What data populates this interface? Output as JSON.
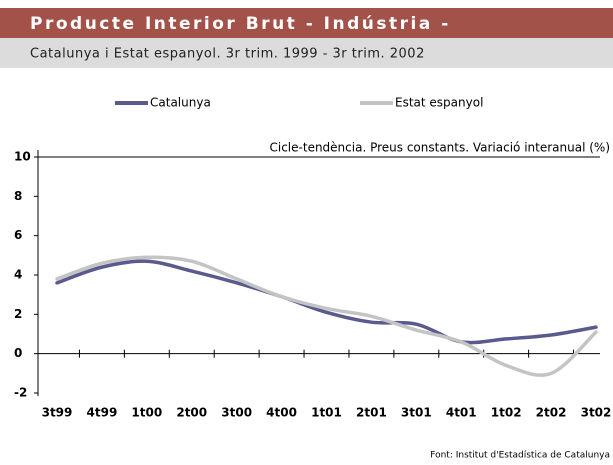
{
  "chart_data": {
    "type": "line",
    "title": "Producte Interior Brut - Indústria -",
    "subtitle": "Catalunya i Estat espanyol. 3r trim. 1999 - 3r trim. 2002",
    "annotation": "Cicle-tendència. Preus constants. Variació interanual (%)",
    "source": "Font: Institut d'Estadística de Catalunya",
    "categories": [
      "3t99",
      "4t99",
      "1t00",
      "2t00",
      "3t00",
      "4t00",
      "1t01",
      "2t01",
      "3t01",
      "4t01",
      "1t02",
      "2t02",
      "3t02"
    ],
    "series": [
      {
        "name": "Catalunya",
        "color": "#5b5a8e",
        "values": [
          3.6,
          4.4,
          4.7,
          4.2,
          3.6,
          2.9,
          2.1,
          1.6,
          1.5,
          0.6,
          0.75,
          0.95,
          1.35
        ]
      },
      {
        "name": "Estat espanyol",
        "color": "#c4c4c4",
        "values": [
          3.8,
          4.6,
          4.9,
          4.7,
          3.8,
          2.9,
          2.3,
          1.9,
          1.2,
          0.6,
          -0.6,
          -1.0,
          1.1
        ]
      }
    ],
    "ylim": [
      -2,
      10
    ],
    "yticks": [
      -2,
      0,
      2,
      4,
      6,
      8,
      10
    ]
  }
}
